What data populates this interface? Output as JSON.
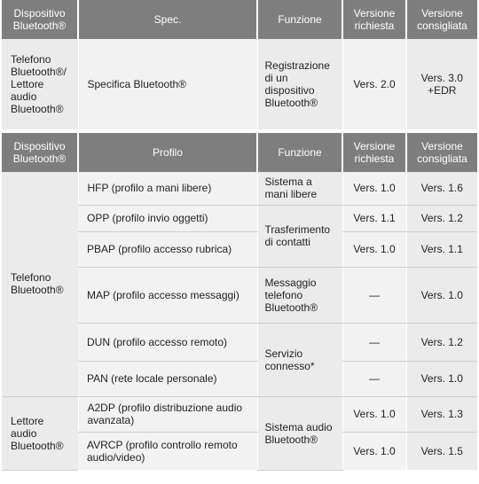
{
  "table1": {
    "headers": [
      "Dispositivo Bluetooth®",
      "Spec.",
      "Funzione",
      "Versione richiesta",
      "Versione consigliata"
    ],
    "row": {
      "device": "Telefono Bluetooth®/ Lettore audio Bluetooth®",
      "spec": "Specifica Bluetooth®",
      "function": "Registrazione di un dispositivo Bluetooth®",
      "required": "Vers. 2.0",
      "recommended": "Vers. 3.0 +EDR"
    }
  },
  "table2": {
    "headers": [
      "Dispositivo Bluetooth®",
      "Profilo",
      "Funzione",
      "Versione richiesta",
      "Versione consigliata"
    ],
    "groups": [
      {
        "device": "Telefono Bluetooth®"
      },
      {
        "device": "Lettore audio Bluetooth®"
      }
    ],
    "functions": [
      "Sistema a mani libere",
      "Trasferimento di contatti",
      "Messaggio telefono Bluetooth®",
      "Servizio connesso*",
      "Sistema audio Bluetooth®"
    ],
    "rows": [
      {
        "profile": "HFP (profilo a mani libere)",
        "required": "Vers. 1.0",
        "recommended": "Vers. 1.6"
      },
      {
        "profile": "OPP (profilo invio oggetti)",
        "required": "Vers. 1.1",
        "recommended": "Vers. 1.2"
      },
      {
        "profile": "PBAP (profilo accesso rubrica)",
        "required": "Vers. 1.0",
        "recommended": "Vers. 1.1"
      },
      {
        "profile": "MAP (profilo accesso messaggi)",
        "required": "—",
        "recommended": "Vers. 1.0"
      },
      {
        "profile": "DUN (profilo accesso remoto)",
        "required": "—",
        "recommended": "Vers. 1.2"
      },
      {
        "profile": "PAN (rete locale personale)",
        "required": "—",
        "recommended": "Vers. 1.0"
      },
      {
        "profile": "A2DP (profilo distribuzione audio avanzata)",
        "required": "Vers. 1.0",
        "recommended": "Vers. 1.3"
      },
      {
        "profile": "AVRCP (profilo controllo remoto audio/video)",
        "required": "Vers. 1.0",
        "recommended": "Vers. 1.5"
      }
    ]
  }
}
